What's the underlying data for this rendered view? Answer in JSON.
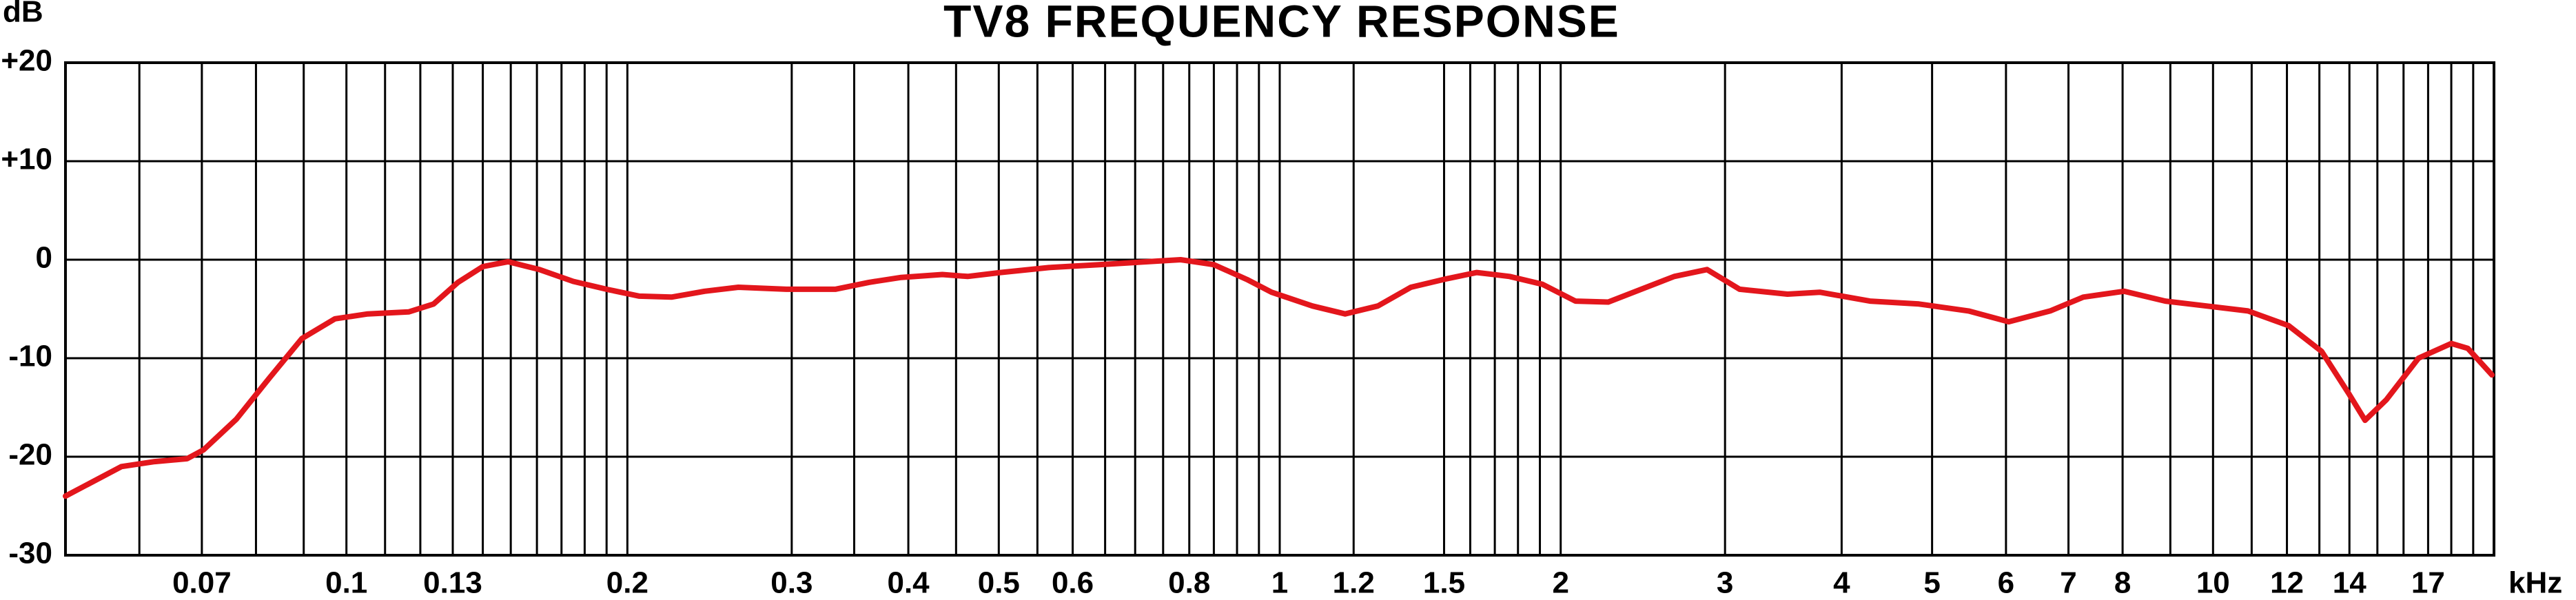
{
  "chart_data": {
    "type": "line",
    "title": "TV8 FREQUENCY RESPONSE",
    "y_label": "dB",
    "x_label": "kHz",
    "x_scale": "log",
    "grid": true,
    "xlim": [
      0.05,
      20
    ],
    "xticks": [
      0.07,
      0.1,
      0.13,
      0.2,
      0.3,
      0.4,
      0.5,
      0.6,
      0.8,
      1,
      1.2,
      1.5,
      2,
      3,
      4,
      5,
      6,
      7,
      8,
      10,
      12,
      14,
      17
    ],
    "x_minor_grid": [
      0.06,
      0.08,
      0.09,
      0.11,
      0.12,
      0.14,
      0.15,
      0.16,
      0.17,
      0.18,
      0.19,
      0.35,
      0.45,
      0.55,
      0.65,
      0.7,
      0.75,
      0.85,
      0.9,
      0.95,
      1.6,
      1.7,
      1.8,
      1.9,
      9,
      11,
      13,
      15,
      16,
      18,
      19
    ],
    "ylim": [
      -30,
      20
    ],
    "yticks": [
      {
        "value": 20,
        "label": "+20"
      },
      {
        "value": 10,
        "label": "+10"
      },
      0,
      -10,
      -20,
      -30
    ],
    "x": [
      0.05,
      0.0574,
      0.0623,
      0.0675,
      0.0703,
      0.0762,
      0.0827,
      0.0896,
      0.0972,
      0.1054,
      0.1166,
      0.124,
      0.1317,
      0.14,
      0.149,
      0.161,
      0.175,
      0.19,
      0.206,
      0.223,
      0.242,
      0.263,
      0.296,
      0.334,
      0.363,
      0.393,
      0.435,
      0.463,
      0.502,
      0.566,
      0.64,
      0.722,
      0.783,
      0.85,
      0.922,
      0.98,
      1.084,
      1.175,
      1.274,
      1.382,
      1.499,
      1.626,
      1.763,
      1.912,
      2.074,
      2.249,
      2.44,
      2.647,
      2.87,
      3.11,
      3.5,
      3.79,
      4.29,
      4.84,
      5.47,
      6.04,
      6.69,
      7.26,
      8.03,
      8.89,
      9.84,
      10.9,
      12.05,
      13.07,
      14.0,
      14.55,
      15.34,
      16.6,
      18.0,
      18.75,
      19.9
    ],
    "series": [
      {
        "color": "#e3161c",
        "values": [
          -24,
          -21,
          -20.5,
          -20.2,
          -19.3,
          -16.2,
          -12,
          -8,
          -6,
          -5.5,
          -5.3,
          -4.5,
          -2.3,
          -0.7,
          -0.2,
          -1,
          -2.2,
          -3,
          -3.7,
          -3.8,
          -3.2,
          -2.8,
          -3,
          -3,
          -2.3,
          -1.8,
          -1.5,
          -1.7,
          -1.3,
          -0.8,
          -0.5,
          -0.2,
          0,
          -0.5,
          -2,
          -3.3,
          -4.7,
          -5.5,
          -4.7,
          -2.8,
          -2,
          -1.3,
          -1.7,
          -2.5,
          -4.2,
          -4.3,
          -3,
          -1.7,
          -1,
          -3,
          -3.5,
          -3.3,
          -4.2,
          -4.5,
          -5.2,
          -6.3,
          -5.2,
          -3.8,
          -3.2,
          -4.2,
          -4.7,
          -5.2,
          -6.7,
          -9.3,
          -13.7,
          -16.3,
          -14.2,
          -10,
          -8.5,
          -9,
          -11.7
        ]
      }
    ]
  }
}
